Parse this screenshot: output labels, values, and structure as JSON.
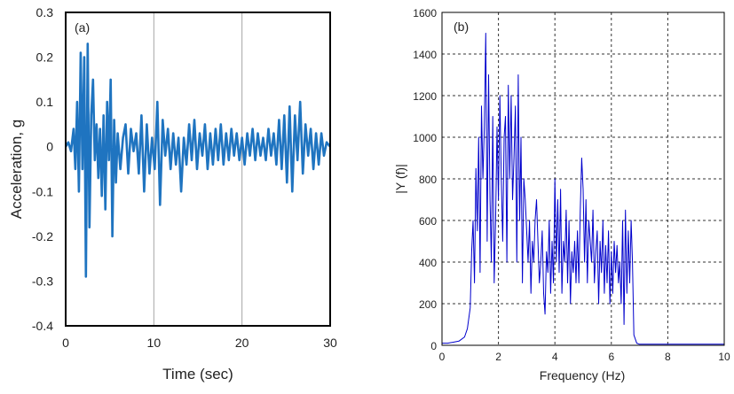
{
  "chart_data": [
    {
      "panel_label": "(a)",
      "type": "line",
      "xlabel": "Time (sec)",
      "ylabel": "Acceleration, g",
      "xlim": [
        0,
        30
      ],
      "ylim": [
        -0.4,
        0.3
      ],
      "xticks": [
        0,
        10,
        20,
        30
      ],
      "yticks": [
        0.3,
        0.2,
        0.1,
        0,
        -0.1,
        -0.2,
        -0.3,
        -0.4
      ],
      "ytick_labels": [
        "0.3",
        "0.2",
        "0.1",
        "0",
        "-0.1",
        "-0.2",
        "-0.3",
        "-0.4"
      ],
      "grid": "vertical",
      "series": [
        {
          "color": "#1f74c0",
          "x": [
            0,
            0.3,
            0.6,
            0.9,
            1.1,
            1.3,
            1.5,
            1.7,
            1.9,
            2.1,
            2.3,
            2.5,
            2.7,
            2.9,
            3.1,
            3.3,
            3.5,
            3.7,
            3.9,
            4.1,
            4.3,
            4.5,
            4.7,
            4.9,
            5.1,
            5.3,
            5.5,
            5.7,
            5.9,
            6.2,
            6.5,
            6.8,
            7.1,
            7.4,
            7.7,
            8.0,
            8.3,
            8.6,
            8.9,
            9.2,
            9.5,
            9.8,
            10.1,
            10.4,
            10.7,
            11.0,
            11.3,
            11.6,
            11.9,
            12.2,
            12.5,
            12.8,
            13.1,
            13.4,
            13.7,
            14.0,
            14.3,
            14.6,
            14.9,
            15.2,
            15.5,
            15.8,
            16.1,
            16.4,
            16.7,
            17.0,
            17.3,
            17.6,
            17.9,
            18.2,
            18.5,
            18.8,
            19.1,
            19.4,
            19.7,
            20.0,
            20.3,
            20.6,
            20.9,
            21.2,
            21.5,
            21.8,
            22.1,
            22.4,
            22.7,
            23.0,
            23.3,
            23.6,
            23.9,
            24.2,
            24.5,
            24.8,
            25.1,
            25.4,
            25.7,
            26.0,
            26.3,
            26.6,
            26.9,
            27.2,
            27.5,
            27.8,
            28.1,
            28.4,
            28.7,
            29.0,
            29.3,
            29.6,
            30.0
          ],
          "y": [
            0,
            0.01,
            -0.01,
            0.04,
            -0.05,
            0.1,
            -0.1,
            0.21,
            -0.05,
            0.2,
            -0.29,
            0.23,
            -0.18,
            0.07,
            0.15,
            -0.03,
            0.05,
            -0.07,
            0.04,
            -0.11,
            0.07,
            -0.14,
            0.1,
            -0.03,
            0.15,
            -0.2,
            0.06,
            -0.08,
            0.03,
            -0.05,
            0.02,
            0.05,
            -0.06,
            0.04,
            -0.01,
            0.03,
            -0.06,
            0.07,
            -0.1,
            0.05,
            -0.06,
            0.02,
            -0.05,
            0.1,
            -0.13,
            0.06,
            -0.02,
            0.04,
            -0.05,
            0.03,
            -0.04,
            0.02,
            -0.1,
            0.02,
            -0.04,
            0.05,
            -0.03,
            0.06,
            -0.05,
            0.03,
            -0.02,
            0.05,
            -0.05,
            0.03,
            -0.04,
            0.04,
            -0.03,
            0.05,
            -0.04,
            0.03,
            -0.03,
            0.04,
            -0.02,
            0.03,
            -0.03,
            0.02,
            -0.04,
            0.03,
            -0.02,
            0.04,
            -0.03,
            0.03,
            -0.02,
            0.02,
            -0.03,
            0.04,
            -0.02,
            0.03,
            -0.04,
            0.06,
            -0.05,
            0.07,
            -0.08,
            0.09,
            -0.1,
            0.07,
            -0.03,
            0.1,
            -0.06,
            0.05,
            -0.02,
            0.04,
            -0.05,
            0.03,
            -0.04,
            0.03,
            -0.02,
            0.01,
            0
          ]
        }
      ]
    },
    {
      "panel_label": "(b)",
      "type": "line",
      "xlabel": "Frequency (Hz)",
      "ylabel": "|Y (f)|",
      "xlim": [
        0,
        10
      ],
      "ylim": [
        0,
        1600
      ],
      "xticks": [
        0,
        2,
        4,
        6,
        8,
        10
      ],
      "yticks": [
        0,
        200,
        400,
        600,
        800,
        1000,
        1200,
        1400,
        1600
      ],
      "grid": "dashed",
      "series": [
        {
          "color": "#0000cc",
          "x": [
            0,
            0.2,
            0.4,
            0.6,
            0.8,
            0.9,
            1.0,
            1.05,
            1.1,
            1.15,
            1.2,
            1.25,
            1.3,
            1.35,
            1.4,
            1.45,
            1.5,
            1.55,
            1.6,
            1.65,
            1.7,
            1.75,
            1.8,
            1.85,
            1.9,
            1.95,
            2.0,
            2.05,
            2.1,
            2.15,
            2.2,
            2.25,
            2.3,
            2.35,
            2.4,
            2.45,
            2.5,
            2.55,
            2.6,
            2.65,
            2.7,
            2.75,
            2.8,
            2.85,
            2.9,
            2.95,
            3.0,
            3.05,
            3.1,
            3.15,
            3.2,
            3.25,
            3.3,
            3.35,
            3.4,
            3.45,
            3.5,
            3.55,
            3.6,
            3.65,
            3.7,
            3.75,
            3.8,
            3.85,
            3.9,
            3.95,
            4.0,
            4.05,
            4.1,
            4.15,
            4.2,
            4.25,
            4.3,
            4.35,
            4.4,
            4.45,
            4.5,
            4.55,
            4.6,
            4.65,
            4.7,
            4.75,
            4.8,
            4.85,
            4.9,
            4.95,
            5.0,
            5.05,
            5.1,
            5.15,
            5.2,
            5.25,
            5.3,
            5.35,
            5.4,
            5.45,
            5.5,
            5.55,
            5.6,
            5.65,
            5.7,
            5.75,
            5.8,
            5.85,
            5.9,
            5.95,
            6.0,
            6.05,
            6.1,
            6.15,
            6.2,
            6.25,
            6.3,
            6.35,
            6.4,
            6.45,
            6.5,
            6.55,
            6.6,
            6.65,
            6.7,
            6.75,
            6.8,
            6.9,
            7.0,
            7.5,
            8.0,
            9.0,
            10.0
          ],
          "y": [
            10,
            10,
            15,
            20,
            40,
            80,
            180,
            450,
            600,
            300,
            850,
            550,
            1000,
            350,
            1150,
            800,
            1050,
            1500,
            500,
            1300,
            700,
            400,
            1100,
            300,
            600,
            1050,
            700,
            1200,
            800,
            500,
            1000,
            1100,
            400,
            1250,
            800,
            1200,
            700,
            900,
            1150,
            400,
            1300,
            600,
            1000,
            300,
            800,
            700,
            550,
            400,
            600,
            250,
            500,
            400,
            600,
            700,
            500,
            300,
            400,
            550,
            250,
            150,
            450,
            350,
            600,
            250,
            500,
            300,
            800,
            400,
            700,
            350,
            750,
            250,
            500,
            400,
            650,
            300,
            600,
            200,
            450,
            350,
            500,
            300,
            550,
            300,
            650,
            900,
            750,
            400,
            700,
            300,
            600,
            500,
            400,
            650,
            300,
            450,
            550,
            200,
            500,
            350,
            600,
            250,
            480,
            300,
            550,
            200,
            450,
            250,
            500,
            350,
            480,
            300,
            400,
            200,
            600,
            100,
            650,
            250,
            550,
            300,
            600,
            400,
            50,
            10,
            5,
            5,
            5,
            5,
            5
          ]
        }
      ]
    }
  ]
}
